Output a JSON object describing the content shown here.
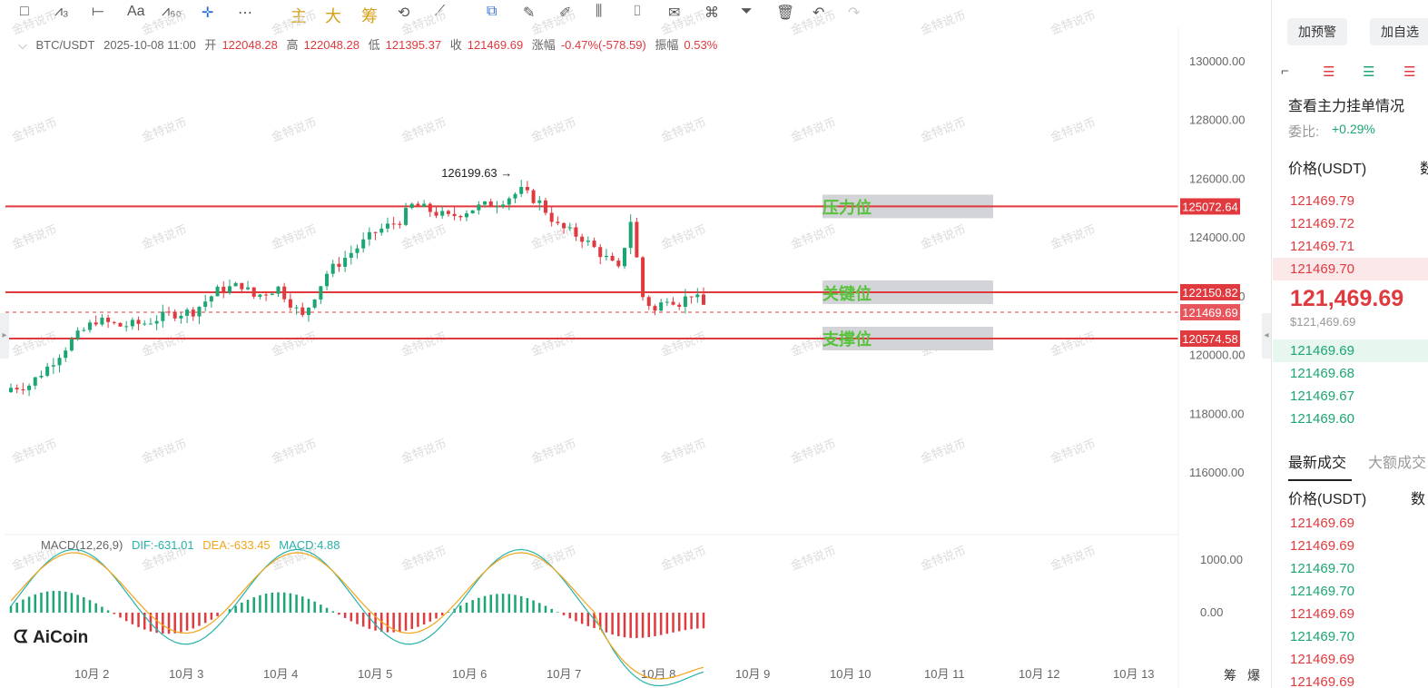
{
  "toolbar": {
    "items": [
      "□",
      "⩘₃",
      "⟝",
      "Aa",
      "⩘₆₀",
      "✛",
      "⋯",
      "主",
      "大",
      "筹",
      "⟲",
      "⟋",
      "⧉",
      "✎",
      "✐",
      "⫼",
      "⌷",
      "✉",
      "⌘",
      "⏷",
      "🗑",
      "↶",
      "↷"
    ]
  },
  "header": {
    "symbol": "BTC/USDT",
    "datetime": "2025-10-08 11:00",
    "open_label": "开",
    "open": "122048.28",
    "high_label": "高",
    "high": "122048.28",
    "low_label": "低",
    "low": "121395.37",
    "close_label": "收",
    "close": "121469.69",
    "change_label": "涨幅",
    "change": "-0.47%(-578.59)",
    "amp_label": "振幅",
    "amp": "0.53%"
  },
  "chart_data": {
    "type": "candlestick",
    "symbol": "BTC/USDT",
    "x_ticks": [
      "10月 2",
      "10月 3",
      "10月 4",
      "10月 5",
      "10月 6",
      "10月 7",
      "10月 8",
      "10月 9",
      "10月 10",
      "10月 11",
      "10月 12",
      "10月 13"
    ],
    "y_ticks": [
      "130000.00",
      "128000.00",
      "126000.00",
      "124000.00",
      "122000.00",
      "120000.00",
      "118000.00",
      "116000.00"
    ],
    "ylim": [
      114000,
      130600
    ],
    "peak_annotation": "126199.63",
    "levels": [
      {
        "label": "压力位",
        "price": 125072.64,
        "price_text": "125072.64",
        "color": "#e0393e"
      },
      {
        "label": "关键位",
        "price": 122150.82,
        "price_text": "122150.82",
        "color": "#e0393e"
      },
      {
        "label": "支撑位",
        "price": 120574.58,
        "price_text": "120574.58",
        "color": "#e0393e"
      }
    ],
    "current_price_text": "121469.69",
    "current_price": 121469.69,
    "close_path": [
      [
        0,
        118900
      ],
      [
        3,
        119000
      ],
      [
        6,
        119600
      ],
      [
        10,
        120500
      ],
      [
        14,
        121200
      ],
      [
        18,
        121000
      ],
      [
        22,
        121100
      ],
      [
        26,
        121400
      ],
      [
        30,
        121500
      ],
      [
        34,
        122200
      ],
      [
        38,
        122400
      ],
      [
        40,
        122000
      ],
      [
        44,
        122300
      ],
      [
        48,
        121300
      ],
      [
        52,
        122800
      ],
      [
        56,
        123500
      ],
      [
        60,
        124200
      ],
      [
        64,
        124600
      ],
      [
        66,
        125100
      ],
      [
        68,
        125000
      ],
      [
        72,
        124700
      ],
      [
        76,
        125000
      ],
      [
        80,
        125200
      ],
      [
        84,
        125600
      ],
      [
        87,
        125200
      ],
      [
        90,
        124400
      ],
      [
        94,
        124000
      ],
      [
        98,
        123300
      ],
      [
        100,
        122900
      ],
      [
        102,
        124600
      ],
      [
        104,
        122000
      ],
      [
        106,
        121500
      ],
      [
        108,
        122000
      ],
      [
        110,
        121800
      ],
      [
        112,
        122100
      ],
      [
        114,
        121700
      ]
    ],
    "macd": {
      "label": "MACD(12,26,9)",
      "dif_text": "DIF:-631.01",
      "dea_text": "DEA:-633.45",
      "macd_text": "MACD:4.88",
      "y_ticks": [
        "1000.00",
        "0.00"
      ]
    }
  },
  "orderbook": {
    "buttons": [
      "加预警",
      "加自选"
    ],
    "title": "查看主力挂单情况",
    "ratio_label": "委比:",
    "ratio": "+0.29%",
    "price_header": "价格(USDT)",
    "qty_header": "数",
    "asks": [
      "121469.79",
      "121469.72",
      "121469.71",
      "121469.70"
    ],
    "mid_price": "121,469.69",
    "mid_usd": "$121,469.69",
    "bids": [
      "121469.69",
      "121469.68",
      "121469.67",
      "121469.60"
    ]
  },
  "trades": {
    "tab_latest": "最新成交",
    "tab_large": "大额成交",
    "price_header": "价格(USDT)",
    "qty_header": "数",
    "rows": [
      {
        "price": "121469.69",
        "side": "ask"
      },
      {
        "price": "121469.69",
        "side": "ask"
      },
      {
        "price": "121469.70",
        "side": "bid"
      },
      {
        "price": "121469.70",
        "side": "bid"
      },
      {
        "price": "121469.69",
        "side": "ask"
      },
      {
        "price": "121469.70",
        "side": "bid"
      },
      {
        "price": "121469.69",
        "side": "ask"
      },
      {
        "price": "121469.69",
        "side": "ask"
      }
    ]
  },
  "bottom_labels": [
    "筹",
    "爆"
  ],
  "logo_text": "AiCoin",
  "watermark": "金特说币",
  "colors": {
    "up": "#1ba672",
    "down": "#e0393e",
    "level": "#e0393e",
    "label": "#58c23c",
    "dif": "#27b3a8",
    "dea": "#f2a51c"
  }
}
